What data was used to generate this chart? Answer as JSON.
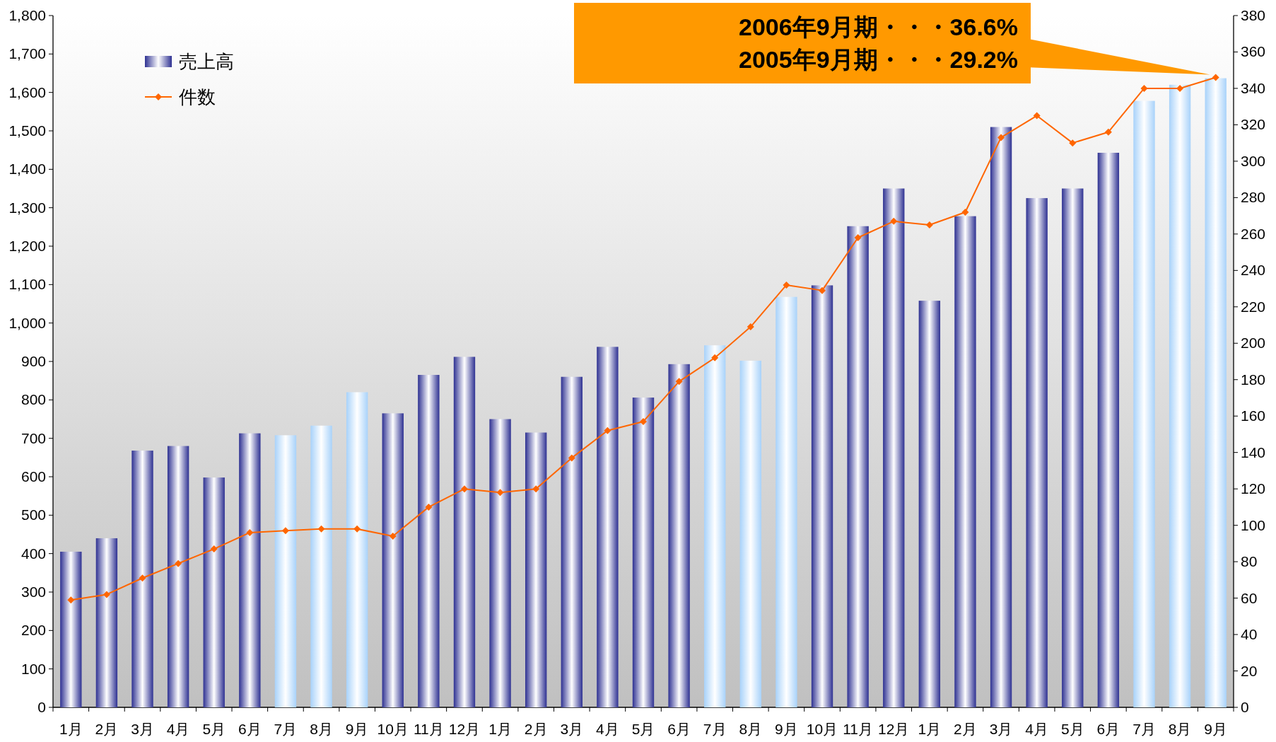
{
  "chart_data": {
    "type": "bar",
    "categories": [
      "1月",
      "2月",
      "3月",
      "4月",
      "5月",
      "6月",
      "7月",
      "8月",
      "9月",
      "10月",
      "11月",
      "12月",
      "1月",
      "2月",
      "3月",
      "4月",
      "5月",
      "6月",
      "7月",
      "8月",
      "9月",
      "10月",
      "11月",
      "12月",
      "1月",
      "2月",
      "3月",
      "4月",
      "5月",
      "6月",
      "7月",
      "8月",
      "9月"
    ],
    "series": [
      {
        "name": "売上高",
        "color": "#2e3192",
        "colors": [
          "#2e3192",
          "#2e3192",
          "#2e3192",
          "#2e3192",
          "#2e3192",
          "#2e3192",
          "#a8d2fa",
          "#a8d2fa",
          "#a8d2fa",
          "#2e3192",
          "#2e3192",
          "#2e3192",
          "#2e3192",
          "#2e3192",
          "#2e3192",
          "#2e3192",
          "#2e3192",
          "#2e3192",
          "#a8d2fa",
          "#a8d2fa",
          "#a8d2fa",
          "#2e3192",
          "#2e3192",
          "#2e3192",
          "#2e3192",
          "#2e3192",
          "#2e3192",
          "#2e3192",
          "#2e3192",
          "#2e3192",
          "#a8d2fa",
          "#a8d2fa",
          "#a8d2fa"
        ],
        "values": [
          405,
          440,
          668,
          680,
          598,
          713,
          708,
          733,
          820,
          765,
          865,
          912,
          750,
          715,
          860,
          938,
          806,
          893,
          942,
          902,
          1068,
          1098,
          1252,
          1350,
          1058,
          1278,
          1510,
          1325,
          1350,
          1443,
          1578,
          1620,
          1637
        ]
      },
      {
        "name": "件数",
        "type": "line",
        "axis": "y2",
        "color": "#ff6600",
        "values": [
          59,
          62,
          71,
          79,
          87,
          96,
          97,
          98,
          98,
          94,
          110,
          120,
          118,
          120,
          137,
          152,
          157,
          179,
          192,
          209,
          232,
          229,
          258,
          267,
          265,
          272,
          313,
          325,
          310,
          316,
          340,
          340,
          346
        ]
      }
    ],
    "ylim": [
      0,
      1800
    ],
    "yticks": [
      0,
      100,
      200,
      300,
      400,
      500,
      600,
      700,
      800,
      900,
      {
        "value": 1000,
        "label": "1,000"
      },
      {
        "value": 1100,
        "label": "1,100"
      },
      {
        "value": 1200,
        "label": "1,200"
      },
      {
        "value": 1300,
        "label": "1,300"
      },
      {
        "value": 1400,
        "label": "1,400"
      },
      {
        "value": 1500,
        "label": "1,500"
      },
      {
        "value": 1600,
        "label": "1,600"
      },
      {
        "value": 1700,
        "label": "1,700"
      },
      {
        "value": 1800,
        "label": "1,800"
      }
    ],
    "y2lim": [
      0,
      380
    ],
    "y2ticks": [
      0,
      20,
      40,
      60,
      80,
      100,
      120,
      140,
      160,
      180,
      200,
      220,
      240,
      260,
      280,
      300,
      320,
      340,
      360,
      380
    ],
    "legend": "top left",
    "marker": "diamond",
    "annotations": [
      "2006年9月期・・・36.6%",
      "2005年9月期・・・29.2%"
    ]
  }
}
